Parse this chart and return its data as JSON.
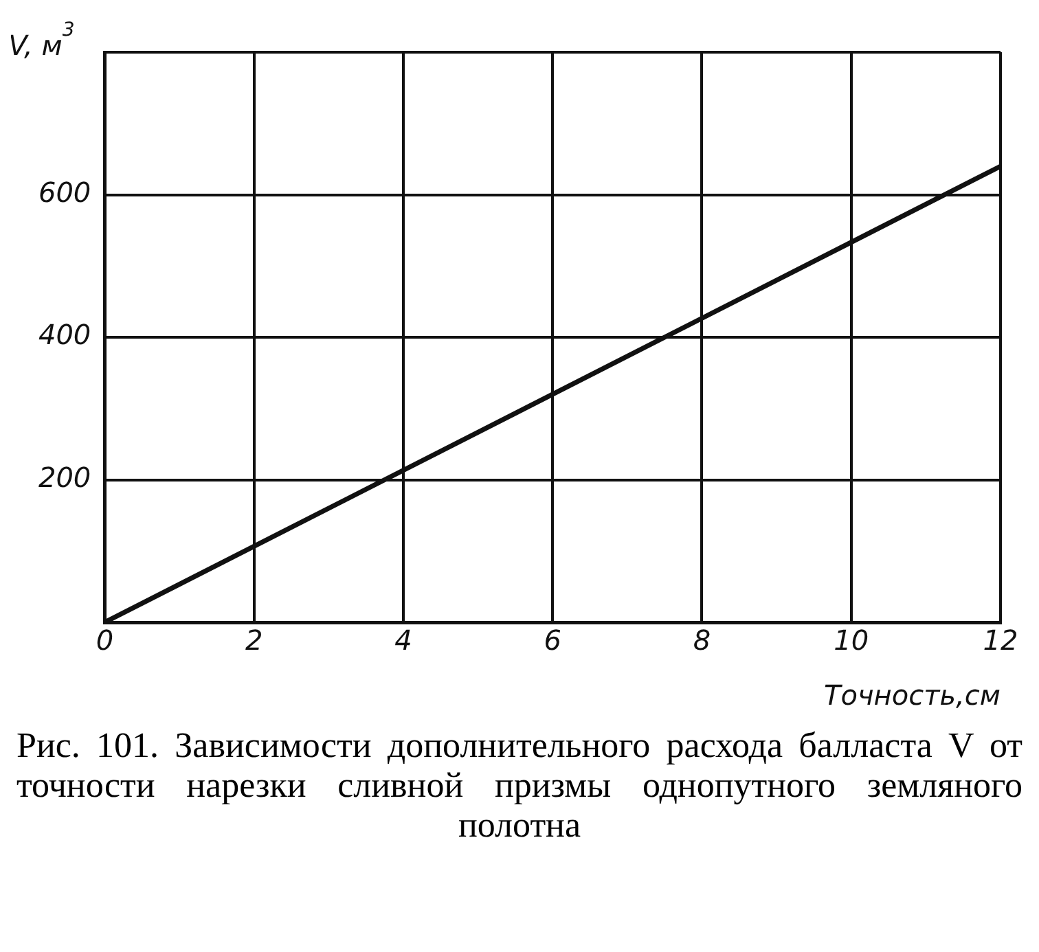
{
  "chart_data": {
    "type": "line",
    "xlabel": "Точность,см",
    "ylabel": "V, м$^{3}$",
    "x": [
      0,
      12
    ],
    "series": [
      {
        "color": "#111111",
        "values": [
          0,
          640
        ]
      }
    ],
    "xlim": [
      0,
      12
    ],
    "xticks": [
      0,
      2,
      4,
      6,
      8,
      10,
      12
    ],
    "ylim": [
      0,
      800
    ],
    "yticks": [
      {
        "value": 0,
        "label": null
      },
      200,
      400,
      600,
      {
        "value": 800,
        "label": null
      }
    ],
    "grid": true,
    "legend": false,
    "marker": "none",
    "line_style": "solid",
    "annotations": [
      "Рис. 101. Зависимости дополнительного расхода балласта V от точности нарезки сливной призмы однопутного земляного полотна"
    ]
  }
}
